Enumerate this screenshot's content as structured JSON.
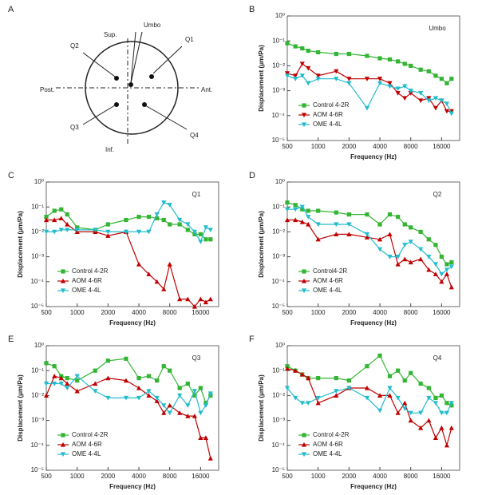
{
  "diagram": {
    "panel_label": "A",
    "labels": {
      "sup": "Sup.",
      "umbo": "Umbo",
      "q1": "Q1",
      "q2": "Q2",
      "post": "Post.",
      "ant": "Ant.",
      "q3": "Q3",
      "q4": "Q4",
      "inf": "Inf."
    }
  },
  "chart_data": [
    {
      "type": "line",
      "panel_label": "B",
      "title": "Umbo",
      "x_label": "Frequency (Hz)",
      "y_label": "Displacement (μm/Pa)",
      "log_x": true,
      "log_y": true,
      "legend": "lower left",
      "xlim": [
        500,
        24000
      ],
      "xticks": [
        500,
        1000,
        2000,
        4000,
        8000,
        16000
      ],
      "ylim": [
        1e-05,
        1
      ],
      "yticks": [
        {
          "value": 1,
          "label": "10⁰"
        },
        {
          "value": 0.1,
          "label": "10⁻¹"
        },
        {
          "value": 0.01,
          "label": "10⁻²"
        },
        {
          "value": 0.001,
          "label": "10⁻³"
        },
        {
          "value": 0.0001,
          "label": "10⁻⁴"
        },
        {
          "value": 1e-05,
          "label": "10⁻⁵"
        }
      ],
      "x": [
        500,
        600,
        700,
        800,
        1000,
        1500,
        2000,
        3000,
        4000,
        5000,
        6000,
        7000,
        8000,
        10000,
        12000,
        14000,
        16000,
        18000,
        20000
      ],
      "series": [
        {
          "name": "Control 4-2R",
          "color": "#33b533",
          "marker": "square",
          "values": [
            0.08,
            0.06,
            0.05,
            0.04,
            0.035,
            0.03,
            0.03,
            0.025,
            0.02,
            0.018,
            0.015,
            0.012,
            0.01,
            0.007,
            0.006,
            0.004,
            0.003,
            0.002,
            0.003
          ]
        },
        {
          "name": "AOM 4-6R",
          "color": "#c00000",
          "marker": "triangle-down",
          "values": [
            0.005,
            0.004,
            0.012,
            0.008,
            0.004,
            0.006,
            0.003,
            0.003,
            0.003,
            0.002,
            0.0008,
            0.0005,
            0.0008,
            0.0004,
            0.0005,
            0.0002,
            0.0004,
            0.00015,
            0.00015
          ]
        },
        {
          "name": "OME 4-4L",
          "color": "#22bccc",
          "marker": "triangle-down",
          "values": [
            0.004,
            0.003,
            0.004,
            0.002,
            0.003,
            0.003,
            0.002,
            0.0002,
            0.002,
            0.0015,
            0.0012,
            0.0015,
            0.001,
            0.0008,
            0.0004,
            0.0005,
            0.0004,
            0.0003,
            0.00012
          ]
        }
      ]
    },
    {
      "type": "line",
      "panel_label": "C",
      "title": "Q1",
      "x_label": "Frequency (Hz)",
      "y_label": "Displacement (μm/Pa)",
      "log_x": true,
      "log_y": true,
      "legend": "lower left",
      "xlim": [
        500,
        24000
      ],
      "xticks": [
        500,
        1000,
        2000,
        4000,
        8000,
        16000
      ],
      "ylim": [
        1e-05,
        1
      ],
      "yticks": [
        {
          "value": 1,
          "label": "10⁰"
        },
        {
          "value": 0.1,
          "label": "10⁻¹"
        },
        {
          "value": 0.01,
          "label": "10⁻²"
        },
        {
          "value": 0.001,
          "label": "10⁻³"
        },
        {
          "value": 0.0001,
          "label": "10⁻⁴"
        },
        {
          "value": 1e-05,
          "label": "10⁻⁵"
        }
      ],
      "x": [
        500,
        600,
        700,
        800,
        1000,
        1500,
        2000,
        3000,
        4000,
        5000,
        6000,
        7000,
        8000,
        10000,
        12000,
        14000,
        16000,
        18000,
        20000
      ],
      "series": [
        {
          "name": "Control 4-2R",
          "color": "#33b533",
          "marker": "square",
          "values": [
            0.04,
            0.07,
            0.08,
            0.05,
            0.015,
            0.012,
            0.02,
            0.03,
            0.04,
            0.04,
            0.035,
            0.03,
            0.02,
            0.02,
            0.012,
            0.008,
            0.008,
            0.005,
            0.005
          ]
        },
        {
          "name": "AOM 4-6R",
          "color": "#c00000",
          "marker": "triangle-up",
          "values": [
            0.03,
            0.03,
            0.035,
            0.02,
            0.01,
            0.01,
            0.007,
            0.01,
            0.0005,
            0.0002,
            0.0001,
            5e-05,
            0.0005,
            2e-05,
            2e-05,
            1e-05,
            2e-05,
            1.5e-05,
            2e-05
          ]
        },
        {
          "name": "OME 4-4L",
          "color": "#22bccc",
          "marker": "triangle-down",
          "values": [
            0.01,
            0.01,
            0.012,
            0.012,
            0.012,
            0.012,
            0.01,
            0.01,
            0.01,
            0.01,
            0.05,
            0.15,
            0.12,
            0.03,
            0.02,
            0.01,
            0.004,
            0.015,
            0.012
          ]
        }
      ]
    },
    {
      "type": "line",
      "panel_label": "D",
      "title": "Q2",
      "x_label": "Frequency (Hz)",
      "y_label": "Displacement (μm/Pa)",
      "log_x": true,
      "log_y": true,
      "legend": "lower left",
      "xlim": [
        500,
        24000
      ],
      "xticks": [
        500,
        1000,
        2000,
        4000,
        8000,
        16000
      ],
      "ylim": [
        1e-05,
        1
      ],
      "yticks": [
        {
          "value": 1,
          "label": "10⁰"
        },
        {
          "value": 0.1,
          "label": "10⁻¹"
        },
        {
          "value": 0.01,
          "label": "10⁻²"
        },
        {
          "value": 0.001,
          "label": "10⁻³"
        },
        {
          "value": 0.0001,
          "label": "10⁻⁴"
        },
        {
          "value": 1e-05,
          "label": "10⁻⁵"
        }
      ],
      "x": [
        500,
        600,
        700,
        800,
        1000,
        1500,
        2000,
        3000,
        4000,
        5000,
        6000,
        7000,
        8000,
        10000,
        12000,
        14000,
        16000,
        18000,
        20000
      ],
      "series": [
        {
          "name": "Control4-2R",
          "color": "#33b533",
          "marker": "square",
          "values": [
            0.15,
            0.12,
            0.08,
            0.07,
            0.07,
            0.06,
            0.05,
            0.05,
            0.02,
            0.05,
            0.04,
            0.02,
            0.015,
            0.01,
            0.005,
            0.003,
            0.001,
            0.0005,
            0.0006
          ]
        },
        {
          "name": "AOM 4-6R",
          "color": "#c00000",
          "marker": "triangle-up",
          "values": [
            0.03,
            0.03,
            0.025,
            0.02,
            0.005,
            0.008,
            0.008,
            0.006,
            0.005,
            0.008,
            0.0005,
            0.0008,
            0.0006,
            0.0008,
            0.0003,
            0.0002,
            0.0001,
            0.0002,
            6e-05
          ]
        },
        {
          "name": "OME 4-4L",
          "color": "#22bccc",
          "marker": "triangle-down",
          "values": [
            0.08,
            0.08,
            0.1,
            0.04,
            0.02,
            0.02,
            0.02,
            0.008,
            0.002,
            0.001,
            0.001,
            0.003,
            0.004,
            0.002,
            0.001,
            0.0005,
            0.0002,
            0.0003,
            0.0004
          ]
        }
      ]
    },
    {
      "type": "line",
      "panel_label": "E",
      "title": "Q3",
      "x_label": "Frequency (Hz)",
      "y_label": "Displacement (μm/Pa)",
      "log_x": true,
      "log_y": true,
      "legend": "lower left",
      "xlim": [
        500,
        24000
      ],
      "xticks": [
        500,
        1000,
        2000,
        4000,
        8000,
        16000
      ],
      "ylim": [
        1e-05,
        1
      ],
      "yticks": [
        {
          "value": 1,
          "label": "10⁰"
        },
        {
          "value": 0.1,
          "label": "10⁻¹"
        },
        {
          "value": 0.01,
          "label": "10⁻²"
        },
        {
          "value": 0.001,
          "label": "10⁻³"
        },
        {
          "value": 0.0001,
          "label": "10⁻⁴"
        },
        {
          "value": 1e-05,
          "label": "10⁻⁵"
        }
      ],
      "x": [
        500,
        600,
        700,
        800,
        1000,
        1500,
        2000,
        3000,
        4000,
        5000,
        6000,
        7000,
        8000,
        10000,
        12000,
        14000,
        16000,
        18000,
        20000
      ],
      "series": [
        {
          "name": "Control 4-2R",
          "color": "#33b533",
          "marker": "square",
          "values": [
            0.2,
            0.15,
            0.06,
            0.05,
            0.04,
            0.1,
            0.25,
            0.3,
            0.05,
            0.06,
            0.04,
            0.15,
            0.1,
            0.02,
            0.03,
            0.01,
            0.02,
            0.005,
            0.01
          ]
        },
        {
          "name": "AOM 4-6R",
          "color": "#c00000",
          "marker": "triangle-up",
          "values": [
            0.01,
            0.06,
            0.05,
            0.03,
            0.015,
            0.03,
            0.05,
            0.04,
            0.02,
            0.01,
            0.006,
            0.002,
            0.004,
            0.002,
            0.0015,
            0.0015,
            0.0002,
            0.0002,
            3e-05
          ]
        },
        {
          "name": "OME 4-4L",
          "color": "#22bccc",
          "marker": "triangle-down",
          "values": [
            0.03,
            0.03,
            0.03,
            0.02,
            0.06,
            0.015,
            0.008,
            0.008,
            0.008,
            0.015,
            0.008,
            0.004,
            0.002,
            0.01,
            0.004,
            0.015,
            0.002,
            0.004,
            0.012
          ]
        }
      ]
    },
    {
      "type": "line",
      "panel_label": "F",
      "title": "Q4",
      "x_label": "Frequency (Hz)",
      "y_label": "Displacement (μm/Pa)",
      "log_x": true,
      "log_y": true,
      "legend": "lower left",
      "xlim": [
        500,
        24000
      ],
      "xticks": [
        500,
        1000,
        2000,
        4000,
        8000,
        16000
      ],
      "ylim": [
        1e-05,
        1
      ],
      "yticks": [
        {
          "value": 1,
          "label": "10⁰"
        },
        {
          "value": 0.1,
          "label": "10⁻¹"
        },
        {
          "value": 0.01,
          "label": "10⁻²"
        },
        {
          "value": 0.001,
          "label": "10⁻³"
        },
        {
          "value": 0.0001,
          "label": "10⁻⁴"
        },
        {
          "value": 1e-05,
          "label": "10⁻⁵"
        }
      ],
      "x": [
        500,
        600,
        700,
        800,
        1000,
        1500,
        2000,
        3000,
        4000,
        5000,
        6000,
        7000,
        8000,
        10000,
        12000,
        14000,
        16000,
        18000,
        20000
      ],
      "series": [
        {
          "name": "Control 4-2R",
          "color": "#33b533",
          "marker": "square",
          "values": [
            0.15,
            0.1,
            0.07,
            0.05,
            0.05,
            0.05,
            0.04,
            0.15,
            0.4,
            0.06,
            0.1,
            0.04,
            0.08,
            0.03,
            0.02,
            0.008,
            0.01,
            0.005,
            0.004
          ]
        },
        {
          "name": "AOM 4-6R",
          "color": "#c00000",
          "marker": "triangle-up",
          "values": [
            0.12,
            0.1,
            0.07,
            0.05,
            0.005,
            0.01,
            0.02,
            0.02,
            0.01,
            0.01,
            0.002,
            0.005,
            0.001,
            0.0005,
            0.001,
            0.0002,
            0.0005,
            0.0001,
            0.0005
          ]
        },
        {
          "name": "OME 4-4L",
          "color": "#22bccc",
          "marker": "triangle-down",
          "values": [
            0.02,
            0.008,
            0.005,
            0.005,
            0.008,
            0.015,
            0.02,
            0.008,
            0.0025,
            0.02,
            0.008,
            0.003,
            0.002,
            0.002,
            0.008,
            0.005,
            0.002,
            0.002,
            0.005
          ]
        }
      ]
    }
  ]
}
